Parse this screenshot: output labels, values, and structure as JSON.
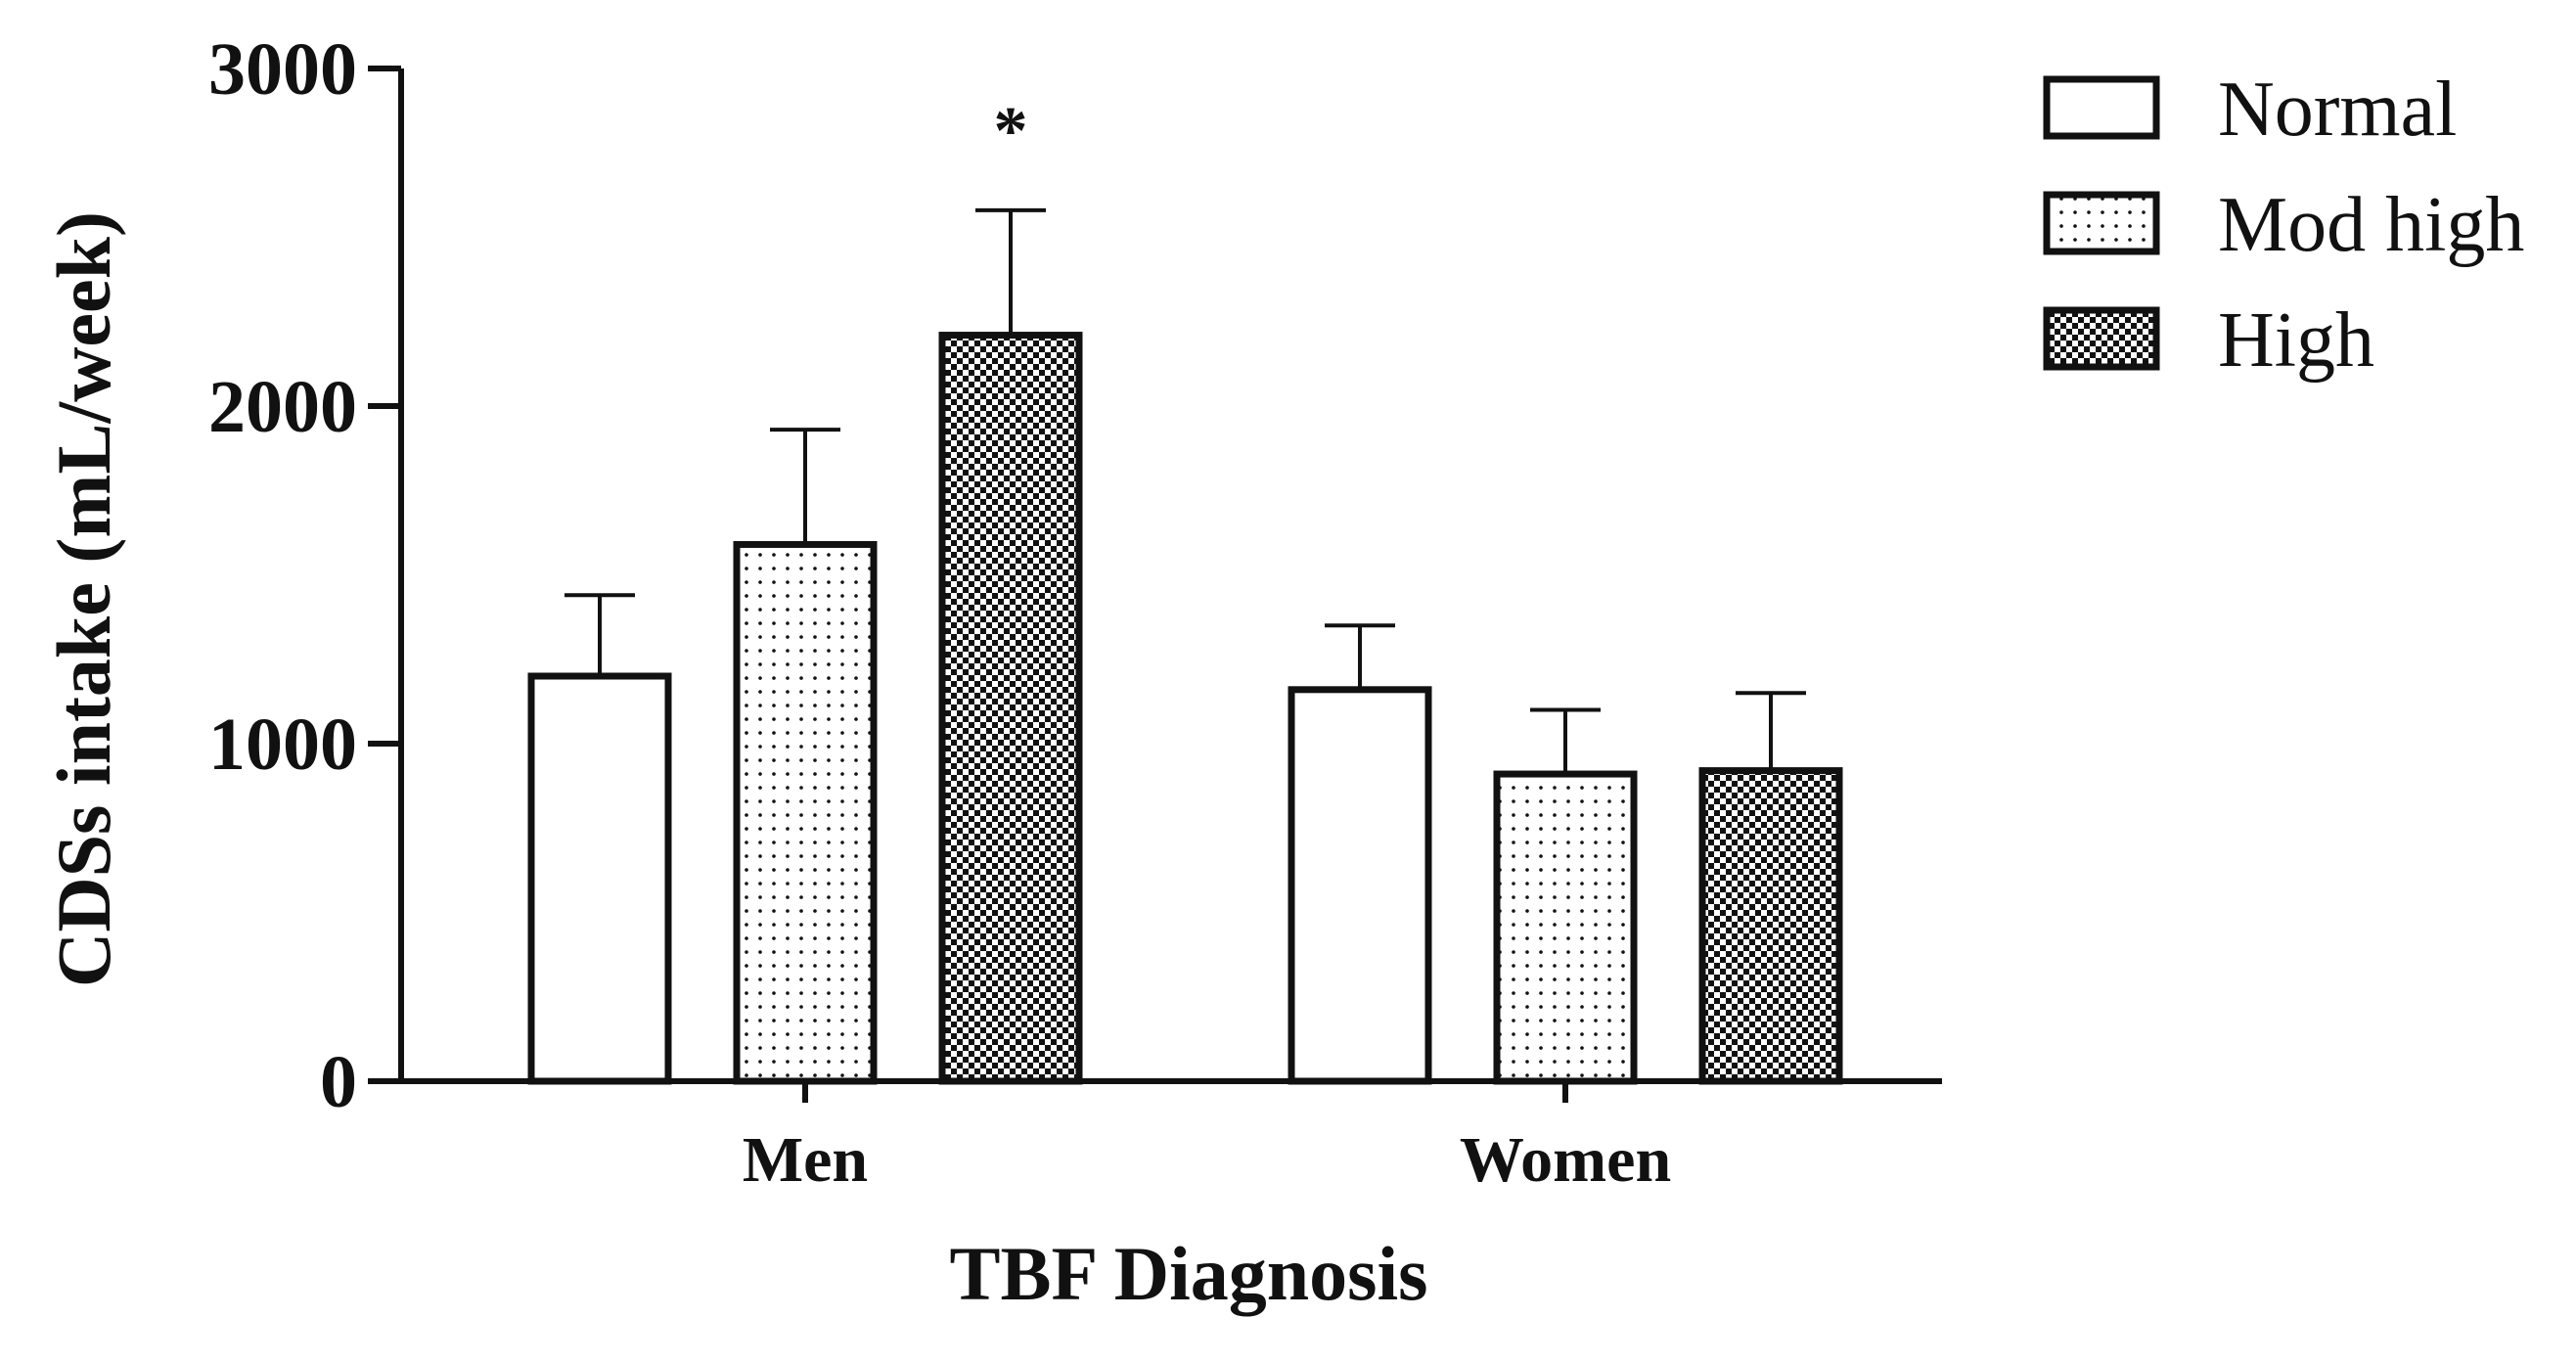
{
  "chart_data": {
    "type": "bar",
    "title": "",
    "xlabel": "TBF Diagnosis",
    "ylabel": "CDSs intake (mL/week)",
    "categories": [
      "Men",
      "Women"
    ],
    "ylim": [
      0,
      3000
    ],
    "yticks": [
      "0",
      "1000",
      "2000",
      "3000"
    ],
    "series": [
      {
        "name": "Normal",
        "pattern": "none",
        "values": [
          1200,
          1160
        ],
        "errors": [
          240,
          190
        ]
      },
      {
        "name": "Mod high",
        "pattern": "sparse-dots",
        "values": [
          1590,
          910
        ],
        "errors": [
          340,
          190
        ]
      },
      {
        "name": "High",
        "pattern": "dense-checker",
        "values": [
          2210,
          920
        ],
        "errors": [
          370,
          230
        ]
      }
    ],
    "annotations": [
      {
        "text": "*",
        "category": "Men",
        "series": "High"
      }
    ],
    "legend": {
      "placement": "top-right"
    },
    "grid": false,
    "colors": {
      "stroke": "#111111",
      "fill": "#ffffff",
      "pattern": "#111111"
    }
  }
}
